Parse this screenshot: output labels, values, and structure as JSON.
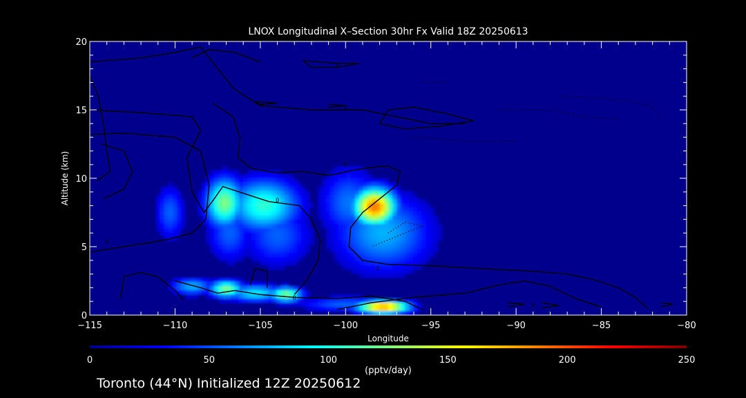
{
  "chart_data": {
    "type": "heatmap",
    "title": "LNOX Longitudinal X–Section 30hr  Fx Valid 18Z 20250613",
    "xlabel": "Longitude",
    "ylabel": "Altitude (km)",
    "xlim": [
      -115,
      -80
    ],
    "ylim": [
      0,
      20
    ],
    "x_ticks": [
      -115,
      -110,
      -105,
      -100,
      -95,
      -90,
      -85,
      -80
    ],
    "x_tick_labels": [
      "−115",
      "−110",
      "−105",
      "−100",
      "−95",
      "−90",
      "−85",
      "−80"
    ],
    "y_ticks": [
      0,
      5,
      10,
      15,
      20
    ],
    "y_tick_labels": [
      "0",
      "5",
      "10",
      "15",
      "20"
    ],
    "colorbar": {
      "min": 0,
      "max": 250,
      "ticks": [
        0,
        50,
        100,
        150,
        200,
        250
      ],
      "tick_labels": [
        "0",
        "50",
        "100",
        "150",
        "200",
        "250"
      ],
      "label": "(pptv/day)",
      "colormap": "jet"
    },
    "background_color": "#00008c",
    "blobs": [
      {
        "lon": -110.3,
        "alt": 7.5,
        "value": 55,
        "slon": 0.6,
        "salt": 1.4
      },
      {
        "lon": -107.1,
        "alt": 8.2,
        "value": 125,
        "slon": 0.8,
        "salt": 1.3
      },
      {
        "lon": -106.8,
        "alt": 6.0,
        "value": 55,
        "slon": 0.9,
        "salt": 1.5
      },
      {
        "lon": -104.8,
        "alt": 8.0,
        "value": 105,
        "slon": 1.5,
        "salt": 1.4
      },
      {
        "lon": -104.0,
        "alt": 5.8,
        "value": 55,
        "slon": 1.4,
        "salt": 1.6
      },
      {
        "lon": -99.8,
        "alt": 8.2,
        "value": 60,
        "slon": 1.2,
        "salt": 1.8
      },
      {
        "lon": -98.3,
        "alt": 7.9,
        "value": 190,
        "slon": 0.9,
        "salt": 1.0
      },
      {
        "lon": -97.8,
        "alt": 6.0,
        "value": 75,
        "slon": 2.0,
        "salt": 2.0
      },
      {
        "lon": -98.0,
        "alt": 4.5,
        "value": 45,
        "slon": 1.3,
        "salt": 1.0
      },
      {
        "lon": -109.0,
        "alt": 2.1,
        "value": 75,
        "slon": 0.9,
        "salt": 0.45
      },
      {
        "lon": -107.0,
        "alt": 1.9,
        "value": 125,
        "slon": 0.7,
        "salt": 0.45
      },
      {
        "lon": -105.3,
        "alt": 1.6,
        "value": 90,
        "slon": 1.2,
        "salt": 0.45
      },
      {
        "lon": -103.5,
        "alt": 1.5,
        "value": 125,
        "slon": 0.7,
        "salt": 0.4
      },
      {
        "lon": -100.0,
        "alt": 0.8,
        "value": 55,
        "slon": 2.0,
        "salt": 0.4
      },
      {
        "lon": -97.8,
        "alt": 0.6,
        "value": 185,
        "slon": 1.1,
        "salt": 0.35
      }
    ],
    "contours": [
      {
        "style": "solid",
        "points": [
          [
            -115,
            17.5
          ],
          [
            -114.5,
            16.0
          ],
          [
            -114.2,
            14.0
          ],
          [
            -114.0,
            12.0
          ],
          [
            -113.8,
            10.5
          ],
          [
            -114.6,
            9.8
          ]
        ]
      },
      {
        "style": "solid",
        "points": [
          [
            -114.3,
            12.5
          ],
          [
            -113.0,
            12.0
          ],
          [
            -112.5,
            10.5
          ],
          [
            -113.0,
            9.2
          ],
          [
            -114.2,
            8.5
          ]
        ]
      },
      {
        "style": "solid",
        "points": [
          [
            -115,
            13.2
          ],
          [
            -113.0,
            13.3
          ],
          [
            -110.0,
            13.0
          ],
          [
            -108.5,
            12.0
          ],
          [
            -108.0,
            9.5
          ],
          [
            -108.2,
            7.0
          ],
          [
            -109.0,
            6.0
          ],
          [
            -110.5,
            5.5
          ],
          [
            -112.5,
            5.1
          ],
          [
            -115,
            4.6
          ]
        ]
      },
      {
        "style": "solid",
        "points": [
          [
            -115,
            18.5
          ],
          [
            -112.0,
            18.8
          ],
          [
            -110.0,
            19.2
          ],
          [
            -108.5,
            19.6
          ],
          [
            -107.5,
            18.0
          ],
          [
            -106.5,
            16.5
          ],
          [
            -105.0,
            15.3
          ],
          [
            -102.0,
            15.0
          ],
          [
            -99.0,
            15.0
          ],
          [
            -97.0,
            14.5
          ],
          [
            -95.0,
            14.0
          ],
          [
            -93.0,
            14.0
          ]
        ]
      },
      {
        "style": "solid",
        "points": [
          [
            -115,
            15.0
          ],
          [
            -112.0,
            14.8
          ],
          [
            -109.0,
            14.5
          ],
          [
            -108.5,
            13.5
          ],
          [
            -109.3,
            11.5
          ],
          [
            -109.0,
            9.0
          ],
          [
            -108.3,
            7.5
          ],
          [
            -107.7,
            8.5
          ],
          [
            -107.2,
            9.4
          ],
          [
            -105.5,
            8.7
          ],
          [
            -104.5,
            8.3
          ],
          [
            -102.7,
            8.0
          ],
          [
            -102.0,
            7.0
          ],
          [
            -101.5,
            5.5
          ],
          [
            -101.6,
            4.0
          ],
          [
            -102.3,
            2.5
          ],
          [
            -103.0,
            1.5
          ]
        ]
      },
      {
        "style": "solid",
        "points": [
          [
            -107.8,
            15.5
          ],
          [
            -106.6,
            14.5
          ],
          [
            -106.2,
            13.0
          ],
          [
            -106.3,
            11.5
          ],
          [
            -105.5,
            10.7
          ],
          [
            -104.0,
            10.4
          ],
          [
            -102.5,
            10.5
          ],
          [
            -101.0,
            10.2
          ],
          [
            -99.5,
            10.6
          ],
          [
            -98.5,
            10.8
          ],
          [
            -97.5,
            10.9
          ],
          [
            -96.8,
            10.5
          ],
          [
            -97.0,
            9.5
          ],
          [
            -98.0,
            8.5
          ],
          [
            -99.0,
            7.5
          ],
          [
            -99.7,
            6.4
          ],
          [
            -99.8,
            5.0
          ],
          [
            -99.0,
            4.0
          ],
          [
            -97.5,
            3.7
          ],
          [
            -95.0,
            3.6
          ],
          [
            -92.0,
            3.4
          ],
          [
            -89.0,
            3.2
          ],
          [
            -87.0,
            3.0
          ],
          [
            -85.5,
            2.6
          ],
          [
            -84.0,
            2.0
          ],
          [
            -83.0,
            1.3
          ],
          [
            -82.3,
            0.5
          ]
        ]
      },
      {
        "style": "solid",
        "points": [
          [
            -110.0,
            2.5
          ],
          [
            -108.5,
            2.0
          ],
          [
            -107.5,
            1.6
          ],
          [
            -106.5,
            1.8
          ],
          [
            -105.0,
            1.5
          ],
          [
            -104.0,
            1.4
          ],
          [
            -103.0,
            1.3
          ],
          [
            -100.5,
            1.2
          ],
          [
            -98.5,
            1.4
          ],
          [
            -96.5,
            1.0
          ],
          [
            -95.5,
            0.4
          ]
        ]
      },
      {
        "style": "solid",
        "points": [
          [
            -113.2,
            1.2
          ],
          [
            -113.0,
            2.8
          ],
          [
            -112.0,
            3.1
          ],
          [
            -111.0,
            2.8
          ],
          [
            -110.0,
            1.8
          ],
          [
            -109.5,
            1.1
          ]
        ]
      },
      {
        "style": "solid",
        "points": [
          [
            -105.6,
            2.2
          ],
          [
            -105.3,
            3.4
          ],
          [
            -104.6,
            3.2
          ],
          [
            -104.6,
            2.0
          ]
        ]
      },
      {
        "style": "solid",
        "points": [
          [
            -100.5,
            0.4
          ],
          [
            -98.5,
            0.9
          ],
          [
            -96.0,
            1.3
          ],
          [
            -93.0,
            1.6
          ],
          [
            -91.0,
            2.2
          ],
          [
            -89.5,
            2.5
          ],
          [
            -88.0,
            2.1
          ],
          [
            -86.5,
            1.2
          ],
          [
            -85.0,
            0.6
          ]
        ]
      },
      {
        "style": "solid",
        "points": [
          [
            -97.5,
            15.0
          ],
          [
            -96.0,
            15.2
          ],
          [
            -94.0,
            14.7
          ],
          [
            -92.5,
            14.2
          ],
          [
            -94.5,
            13.8
          ],
          [
            -96.5,
            13.6
          ],
          [
            -98.0,
            14.0
          ],
          [
            -97.5,
            15.0
          ]
        ]
      },
      {
        "style": "solid",
        "points": [
          [
            -109.0,
            18.8
          ],
          [
            -108.0,
            19.4
          ],
          [
            -106.5,
            19.2
          ],
          [
            -105.0,
            18.5
          ]
        ]
      },
      {
        "style": "solid",
        "points": [
          [
            -102.5,
            18.6
          ],
          [
            -100.5,
            18.4
          ],
          [
            -99.2,
            18.4
          ],
          [
            -100.5,
            18.1
          ],
          [
            -102.0,
            18.1
          ],
          [
            -102.5,
            18.6
          ]
        ]
      },
      {
        "style": "solid",
        "points": [
          [
            -105.3,
            15.6
          ],
          [
            -104.0,
            15.5
          ],
          [
            -105.0,
            15.4
          ],
          [
            -105.3,
            15.6
          ]
        ]
      },
      {
        "style": "solid",
        "points": [
          [
            -101.0,
            15.4
          ],
          [
            -100.0,
            15.3
          ],
          [
            -101.0,
            15.2
          ]
        ]
      },
      {
        "style": "solid",
        "points": [
          [
            -88.5,
            0.9
          ],
          [
            -87.5,
            0.7
          ],
          [
            -88.5,
            0.5
          ]
        ]
      },
      {
        "style": "solid",
        "points": [
          [
            -90.5,
            0.9
          ],
          [
            -89.5,
            0.8
          ],
          [
            -90.5,
            0.6
          ]
        ]
      },
      {
        "style": "solid",
        "points": [
          [
            -81.5,
            0.9
          ],
          [
            -80.8,
            0.8
          ],
          [
            -81.5,
            0.6
          ]
        ]
      },
      {
        "style": "dotted",
        "points": [
          [
            -91.0,
            15.0
          ],
          [
            -88.0,
            15.0
          ],
          [
            -86.0,
            14.5
          ],
          [
            -84.0,
            14.3
          ]
        ]
      },
      {
        "style": "dotted",
        "points": [
          [
            -87.5,
            16.0
          ],
          [
            -83.5,
            15.7
          ],
          [
            -82.0,
            15.2
          ],
          [
            -81.5,
            14.3
          ]
        ]
      },
      {
        "style": "dotted",
        "points": [
          [
            -97.5,
            6.0
          ],
          [
            -96.5,
            6.8
          ],
          [
            -95.5,
            6.5
          ],
          [
            -97.5,
            5.5
          ],
          [
            -98.5,
            5.0
          ]
        ]
      },
      {
        "style": "dotted",
        "points": [
          [
            -95.5,
            17.0
          ],
          [
            -94.0,
            17.0
          ]
        ]
      },
      {
        "style": "dotted",
        "points": [
          [
            -96.0,
            13.0
          ],
          [
            -93.0,
            12.7
          ],
          [
            -90.0,
            12.7
          ]
        ]
      }
    ],
    "contour_labels": [
      {
        "lon": -114.0,
        "alt": 5.4,
        "text": "0"
      },
      {
        "lon": -104.0,
        "alt": 8.4,
        "text": "0"
      },
      {
        "lon": -100.0,
        "alt": 15.2,
        "text": "0"
      },
      {
        "lon": -100.0,
        "alt": 11.0,
        "text": "0"
      },
      {
        "lon": -100.5,
        "alt": 18.3,
        "text": "0"
      },
      {
        "lon": -98.1,
        "alt": 3.4,
        "text": "0"
      },
      {
        "lon": -103.0,
        "alt": 1.3,
        "text": "0"
      },
      {
        "lon": -89.0,
        "alt": 0.7,
        "text": "0"
      }
    ]
  },
  "footer": {
    "location_text": "Toronto (44°N) Initialized 12Z 20250612"
  }
}
